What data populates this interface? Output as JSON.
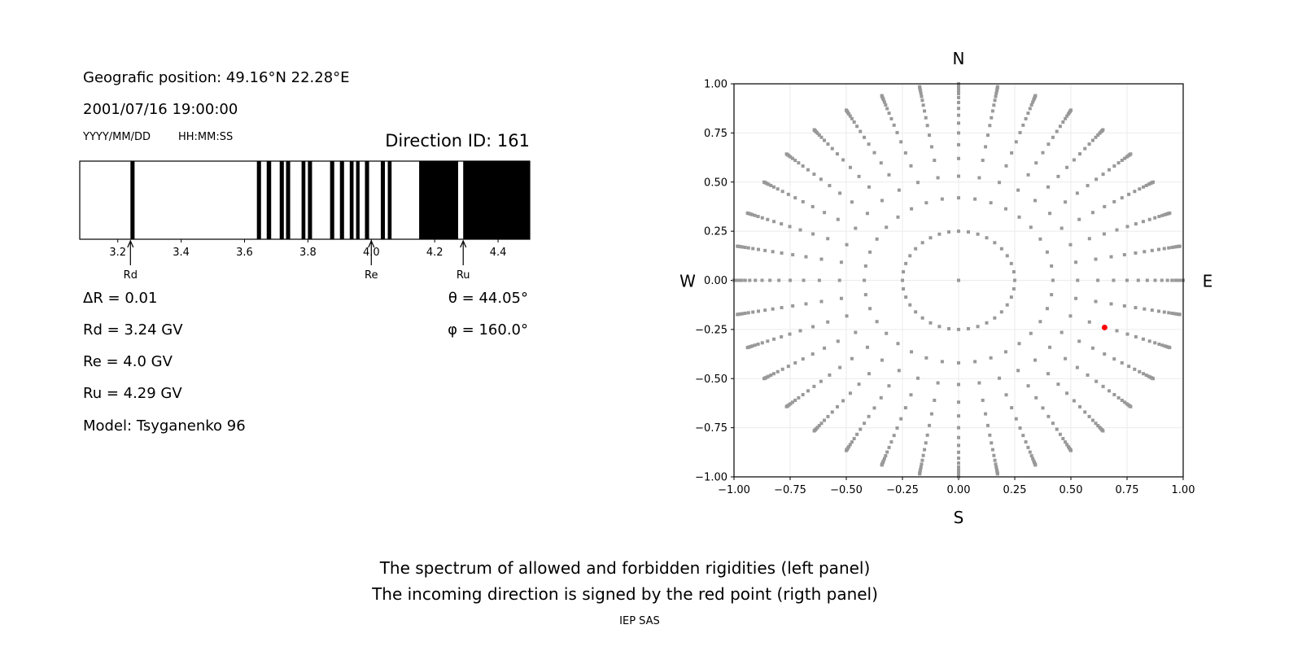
{
  "left_panel": {
    "position": "Geografic position: 49.16°N 22.28°E",
    "datetime": "2001/07/16 19:00:00",
    "date_format": "YYYY/MM/DD",
    "time_format": "HH:MM:SS",
    "direction_id": "Direction ID: 161",
    "delta_r": "ΔR = 0.01",
    "rd": "Rd = 3.24 GV",
    "re": "Re = 4.0 GV",
    "ru": "Ru = 4.29 GV",
    "model": "Model: Tsyganenko 96",
    "theta": "θ = 44.05°",
    "phi": "φ = 160.0°"
  },
  "chart_data": [
    {
      "type": "spectrum-bar",
      "xlim": [
        3.08,
        4.5
      ],
      "ticks": [
        "3.2",
        "3.4",
        "3.6",
        "3.8",
        "4.0",
        "4.2",
        "4.4"
      ],
      "forbidden_bands": [
        [
          3.24,
          3.253
        ],
        [
          3.639,
          3.652
        ],
        [
          3.67,
          3.684
        ],
        [
          3.711,
          3.724
        ],
        [
          3.731,
          3.744
        ],
        [
          3.78,
          3.792
        ],
        [
          3.8,
          3.813
        ],
        [
          3.87,
          3.883
        ],
        [
          3.901,
          3.914
        ],
        [
          3.932,
          3.944
        ],
        [
          3.952,
          3.963
        ],
        [
          3.98,
          3.993
        ],
        [
          4.03,
          4.043
        ],
        [
          4.052,
          4.064
        ],
        [
          4.151,
          4.274
        ],
        [
          4.29,
          4.5
        ]
      ],
      "markers": [
        {
          "label": "Rd",
          "value": 3.24
        },
        {
          "label": "Re",
          "value": 4.0
        },
        {
          "label": "Ru",
          "value": 4.29
        }
      ],
      "colors": {
        "forbidden": "#000000",
        "allowed": "#ffffff"
      }
    },
    {
      "type": "scatter",
      "xlim": [
        -1,
        1
      ],
      "ylim": [
        -1,
        1
      ],
      "ticks": [
        "−1.00",
        "−0.75",
        "−0.50",
        "−0.25",
        "0.00",
        "0.25",
        "0.50",
        "0.75",
        "1.00"
      ],
      "grid": true,
      "compass": {
        "n": "N",
        "s": "S",
        "w": "W",
        "e": "E"
      },
      "directions": {
        "azimuth_step_deg": 10,
        "radii": [
          0.25,
          0.42,
          0.53,
          0.62,
          0.69,
          0.75,
          0.8,
          0.84,
          0.875,
          0.905,
          0.93,
          0.95,
          0.965,
          0.977,
          0.985,
          0.992,
          0.997,
          1.0
        ],
        "center_point": [
          0,
          0
        ]
      },
      "highlight_point": {
        "x": 0.65,
        "y": -0.24
      },
      "colors": {
        "points": "#999999",
        "highlight": "#ff0000",
        "grid": "#ebebeb"
      }
    }
  ],
  "caption": {
    "line1": "The spectrum of allowed and forbidden rigidities (left panel)",
    "line2": "The incoming direction is signed by the red point (rigth panel)",
    "credit": "IEP SAS"
  }
}
